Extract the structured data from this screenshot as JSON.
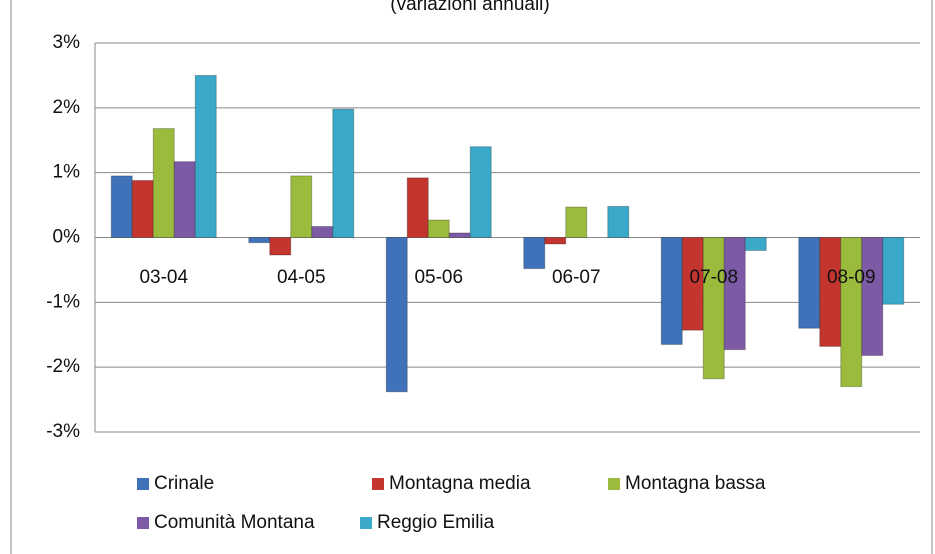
{
  "chart_data": {
    "type": "bar",
    "title": "(variazioni annuali)",
    "categories": [
      "03-04",
      "04-05",
      "05-06",
      "06-07",
      "07-08",
      "08-09"
    ],
    "series": [
      {
        "name": "Crinale",
        "color": "#3f72b8",
        "values": [
          0.95,
          -0.08,
          -2.38,
          -0.48,
          -1.65,
          -1.4
        ]
      },
      {
        "name": "Montagna media",
        "color": "#c4352f",
        "values": [
          0.88,
          -0.27,
          0.92,
          -0.1,
          -1.43,
          -1.68
        ]
      },
      {
        "name": "Montagna bassa",
        "color": "#9bbb3c",
        "values": [
          1.68,
          0.95,
          0.27,
          0.47,
          -2.18,
          -2.3
        ]
      },
      {
        "name": "Comunità Montana",
        "color": "#7d5aa6",
        "values": [
          1.17,
          0.17,
          0.07,
          0,
          -1.73,
          -1.82
        ]
      },
      {
        "name": "Reggio Emilia",
        "color": "#3aa9c9",
        "values": [
          2.5,
          1.98,
          1.4,
          0.48,
          -0.2,
          -1.03
        ]
      }
    ],
    "ylim": [
      -3,
      3
    ],
    "yticks": [
      {
        "value": -3,
        "label": "-3%"
      },
      {
        "value": -2,
        "label": "-2%"
      },
      {
        "value": -1,
        "label": "-1%"
      },
      {
        "value": 0,
        "label": "0%"
      },
      {
        "value": 1,
        "label": "1%"
      },
      {
        "value": 2,
        "label": "2%"
      },
      {
        "value": 3,
        "label": "3%"
      }
    ],
    "grid": true,
    "legend": "bottom"
  }
}
